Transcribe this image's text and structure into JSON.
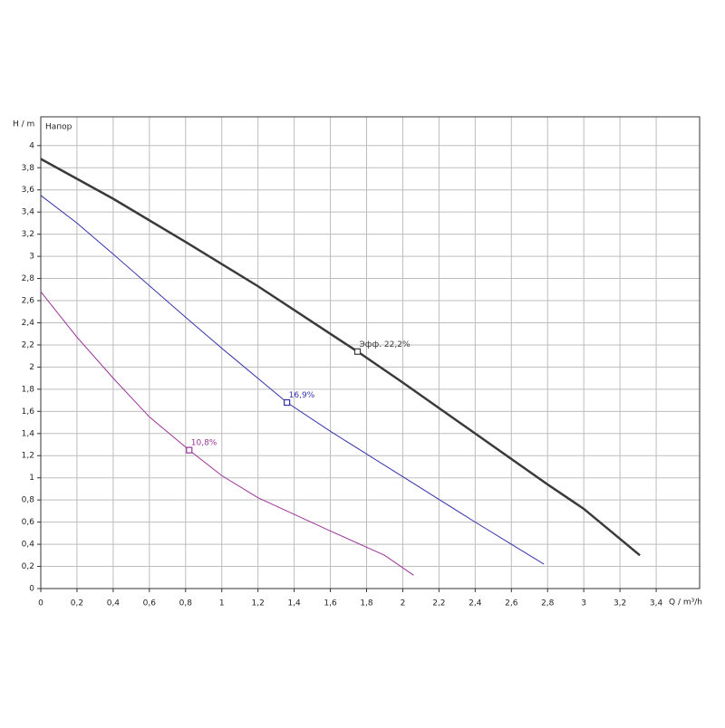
{
  "chart_data": {
    "type": "line",
    "ylabel": "H / m",
    "xlabel": "Q / m³/h",
    "annotation": "Напор",
    "xlim": [
      0,
      3.64
    ],
    "ylim": [
      0,
      4.26
    ],
    "grid": true,
    "xticks": [
      0,
      {
        "value": 0.2,
        "label": "0,2"
      },
      {
        "value": 0.4,
        "label": "0,4"
      },
      {
        "value": 0.6,
        "label": "0,6"
      },
      {
        "value": 0.8,
        "label": "0,8"
      },
      1,
      {
        "value": 1.2,
        "label": "1,2"
      },
      {
        "value": 1.4,
        "label": "1,4"
      },
      {
        "value": 1.6,
        "label": "1,6"
      },
      {
        "value": 1.8,
        "label": "1,8"
      },
      2,
      {
        "value": 2.2,
        "label": "2,2"
      },
      {
        "value": 2.4,
        "label": "2,4"
      },
      {
        "value": 2.6,
        "label": "2,6"
      },
      {
        "value": 2.8,
        "label": "2,8"
      },
      3,
      {
        "value": 3.2,
        "label": "3,2"
      },
      {
        "value": 3.4,
        "label": "3,4"
      }
    ],
    "yticks": [
      0,
      {
        "value": 0.2,
        "label": "0,2"
      },
      {
        "value": 0.4,
        "label": "0,4"
      },
      {
        "value": 0.6,
        "label": "0,6"
      },
      {
        "value": 0.8,
        "label": "0,8"
      },
      1,
      {
        "value": 1.2,
        "label": "1,2"
      },
      {
        "value": 1.4,
        "label": "1,4"
      },
      {
        "value": 1.6,
        "label": "1,6"
      },
      {
        "value": 1.8,
        "label": "1,8"
      },
      2,
      {
        "value": 2.2,
        "label": "2,2"
      },
      {
        "value": 2.4,
        "label": "2,4"
      },
      {
        "value": 2.6,
        "label": "2,6"
      },
      {
        "value": 2.8,
        "label": "2,8"
      },
      3,
      {
        "value": 3.2,
        "label": "3,2"
      },
      {
        "value": 3.4,
        "label": "3,4"
      },
      {
        "value": 3.6,
        "label": "3,6"
      },
      {
        "value": 3.8,
        "label": "3,8"
      },
      4
    ],
    "series": [
      {
        "color": "#3a3a3a",
        "width": 2.5,
        "x": [
          0,
          0.4,
          0.8,
          1.2,
          1.6,
          1.75,
          2.0,
          2.4,
          2.8,
          3.0,
          3.31
        ],
        "values": [
          3.88,
          3.52,
          3.13,
          2.73,
          2.3,
          2.14,
          1.86,
          1.4,
          0.94,
          0.72,
          0.3
        ],
        "point": {
          "x": 1.75,
          "y": 2.14,
          "label": "Эфф.  22,2%"
        }
      },
      {
        "color": "#3333aa",
        "width": 1,
        "x": [
          0,
          0.2,
          0.4,
          0.8,
          1.0,
          1.36,
          1.6,
          2.0,
          2.4,
          2.6,
          2.78
        ],
        "values": [
          3.55,
          3.3,
          3.02,
          2.45,
          2.17,
          1.68,
          1.42,
          1.01,
          0.6,
          0.4,
          0.22
        ],
        "point": {
          "x": 1.36,
          "y": 1.68,
          "label": "16,9%"
        }
      },
      {
        "color": "#993399",
        "width": 1,
        "x": [
          0,
          0.2,
          0.4,
          0.6,
          0.82,
          1.0,
          1.2,
          1.4,
          1.6,
          1.9,
          2.06
        ],
        "values": [
          2.68,
          2.27,
          1.9,
          1.55,
          1.25,
          1.02,
          0.82,
          0.67,
          0.52,
          0.3,
          0.12
        ],
        "point": {
          "x": 0.82,
          "y": 1.25,
          "label": "10,8%"
        }
      }
    ]
  }
}
